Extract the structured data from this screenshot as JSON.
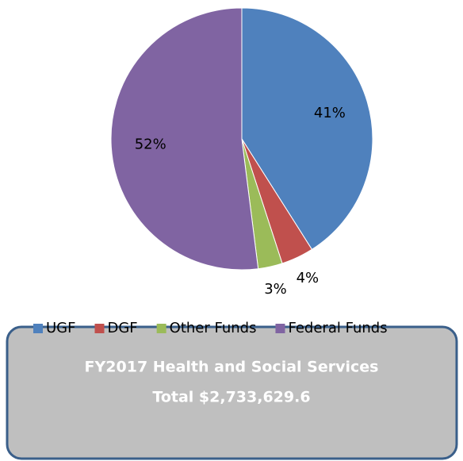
{
  "chart_data": {
    "type": "pie",
    "categories": [
      "UGF",
      "DGF",
      "Other Funds",
      "Federal Funds"
    ],
    "values": [
      41,
      4,
      3,
      52
    ],
    "value_labels": [
      "41%",
      "4%",
      "3%",
      "52%"
    ],
    "colors": [
      "#4f81bd",
      "#c0504d",
      "#9bbb59",
      "#8064a2"
    ],
    "legend": "bottom",
    "annotations": [
      "FY2017 Health and Social Services",
      "Total $2,733,629.6"
    ]
  }
}
